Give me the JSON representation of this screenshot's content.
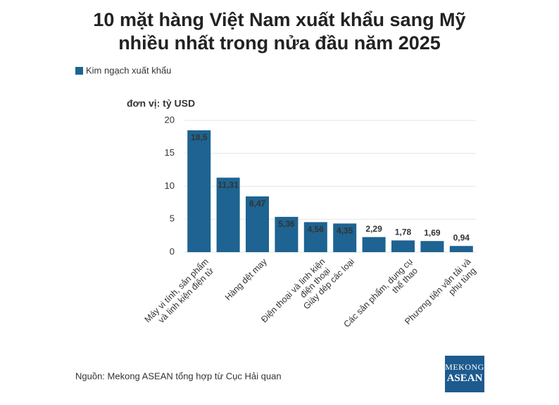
{
  "chart_data": {
    "type": "bar",
    "title": "10 mặt hàng Việt Nam xuất khẩu sang Mỹ nhiều nhất trong nửa đầu năm 2025",
    "y_axis_label": "đơn vị: tỷ USD",
    "categories": [
      "Máy vi tính, sản phẩm và linh kiện điện tử",
      null,
      "Hàng dệt may",
      null,
      "Điện thoại và linh kiện điện thoại",
      "Giày dép các loại",
      null,
      "Các sản phẩm, dụng cụ thể thao",
      null,
      "Phương tiện vận tải và phụ tùng"
    ],
    "series": [
      {
        "name": "Kim ngạch xuất khẩu",
        "color": "#1e6391",
        "values": [
          18.5,
          11.31,
          8.47,
          5.36,
          4.56,
          4.35,
          2.29,
          1.78,
          1.69,
          0.94
        ],
        "value_labels": [
          "18,5",
          "11,31",
          "8,47",
          "5,36",
          "4,56",
          "4,35",
          "2,29",
          "1,78",
          "1,69",
          "0,94"
        ]
      }
    ],
    "ylim": [
      0,
      20
    ],
    "yticks": [
      0,
      5,
      10,
      15,
      20
    ],
    "grid": true,
    "source": "Nguồn: Mekong ASEAN tổng hợp từ Cục Hải quan",
    "logo": [
      "MEKONG",
      "ASEAN"
    ]
  }
}
